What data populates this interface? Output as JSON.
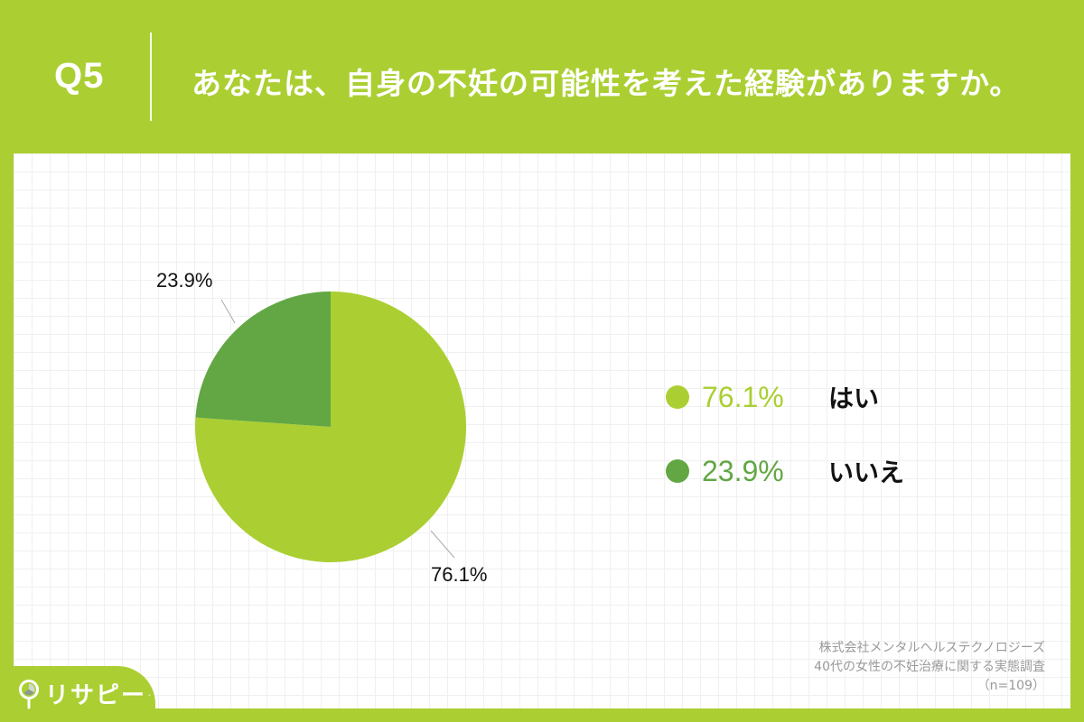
{
  "header": {
    "question_number": "Q5",
    "question_text": "あなたは、自身の不妊の可能性を考えた経験がありますか。"
  },
  "colors": {
    "brand_green": "#abcf32",
    "yes_color": "#abcf32",
    "no_color": "#62a744",
    "background_panel": "#ffffff"
  },
  "chart_data": {
    "type": "pie",
    "title": "あなたは、自身の不妊の可能性を考えた経験がありますか。",
    "categories": [
      "はい",
      "いいえ"
    ],
    "values": [
      76.1,
      23.9
    ],
    "unit": "%",
    "colors": [
      "#abcf32",
      "#62a744"
    ],
    "data_labels": [
      "76.1%",
      "23.9%"
    ],
    "legend_position": "right",
    "start_angle": "12 o'clock, 'いいえ' slice counterclockwise",
    "sample_size": 109
  },
  "pie_labels": {
    "yes": "76.1%",
    "no": "23.9%"
  },
  "legend": {
    "items": [
      {
        "pct": "76.1%",
        "label": "はい"
      },
      {
        "pct": "23.9%",
        "label": "いいえ"
      }
    ]
  },
  "source": {
    "line1": "株式会社メンタルヘルステクノロジーズ",
    "line2": "40代の女性の不妊治療に関する実態調査",
    "line3": "（n=109）"
  },
  "logo": {
    "text": "リサピー",
    "icon": "magnifier-pie-icon"
  }
}
